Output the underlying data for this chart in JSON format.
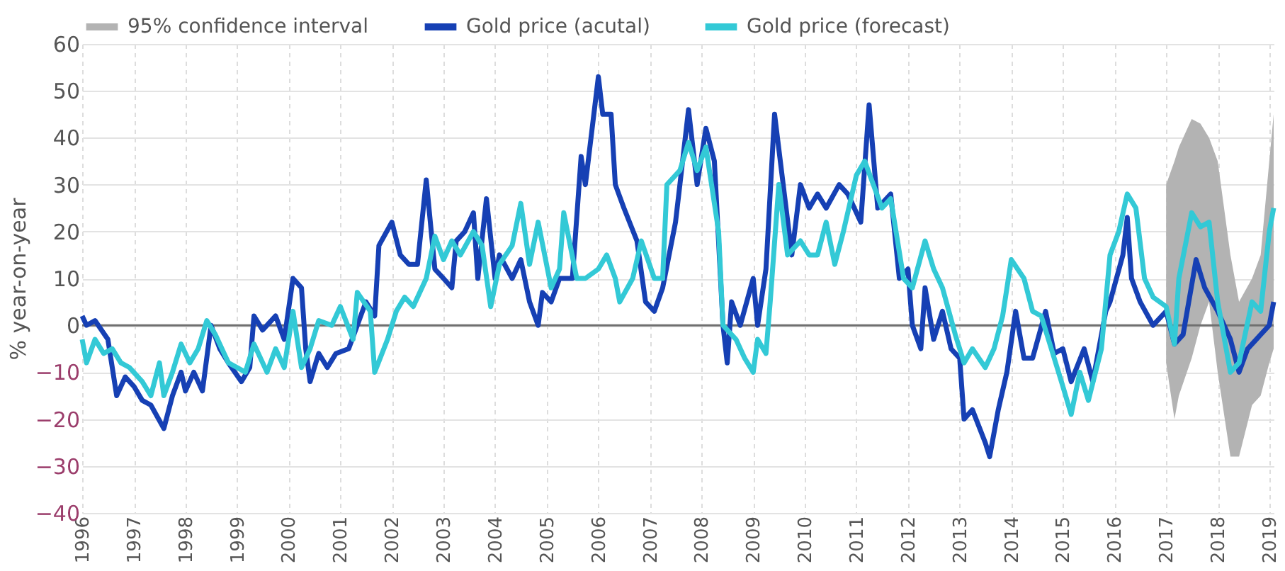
{
  "chart_data": {
    "type": "line",
    "ylabel": "% year-on-year",
    "xlim": [
      "1996-01",
      "2019-02"
    ],
    "ylim": [
      -40,
      60
    ],
    "yticks": [
      -40,
      -30,
      -20,
      -10,
      0,
      10,
      20,
      30,
      40,
      50,
      60
    ],
    "xticks": [
      "1996",
      "1997",
      "1998",
      "1999",
      "2000",
      "2001",
      "2002",
      "2003",
      "2004",
      "2005",
      "2006",
      "2007",
      "2008",
      "2009",
      "2010",
      "2011",
      "2012",
      "2013",
      "2014",
      "2015",
      "2016",
      "2017",
      "2018",
      "2019"
    ],
    "grid": true,
    "legend": "top",
    "annotations": [
      "95% confidence interval"
    ],
    "ref_lines": [
      {
        "axis": "y",
        "value": 0,
        "color": "#707070"
      }
    ],
    "series": [
      {
        "name": "Gold price (acutal)",
        "color": "#1640b4",
        "x": [
          "1996-01",
          "1996-02",
          "1996-04",
          "1996-07",
          "1996-09",
          "1996-11",
          "1997-01",
          "1997-03",
          "1997-05",
          "1997-08",
          "1997-10",
          "1997-12",
          "1998-01",
          "1998-03",
          "1998-05",
          "1998-07",
          "1998-09",
          "1998-11",
          "1999-02",
          "1999-04",
          "1999-05",
          "1999-07",
          "1999-10",
          "1999-12",
          "2000-02",
          "2000-04",
          "2000-05",
          "2000-06",
          "2000-08",
          "2000-10",
          "2000-12",
          "2001-03",
          "2001-05",
          "2001-07",
          "2001-09",
          "2001-10",
          "2002-01",
          "2002-03",
          "2002-05",
          "2002-07",
          "2002-09",
          "2002-11",
          "2003-01",
          "2003-03",
          "2003-04",
          "2003-06",
          "2003-08",
          "2003-09",
          "2003-11",
          "2004-01",
          "2004-02",
          "2004-05",
          "2004-07",
          "2004-09",
          "2004-11",
          "2004-12",
          "2005-02",
          "2005-04",
          "2005-07",
          "2005-09",
          "2005-10",
          "2006-01",
          "2006-02",
          "2006-04",
          "2006-05",
          "2006-07",
          "2006-10",
          "2006-12",
          "2007-02",
          "2007-04",
          "2007-07",
          "2007-08",
          "2007-10",
          "2007-12",
          "2008-02",
          "2008-04",
          "2008-06",
          "2008-07",
          "2008-08",
          "2008-10",
          "2009-01",
          "2009-02",
          "2009-04",
          "2009-06",
          "2009-08",
          "2009-10",
          "2009-12",
          "2010-02",
          "2010-04",
          "2010-06",
          "2010-09",
          "2010-11",
          "2011-02",
          "2011-04",
          "2011-06",
          "2011-09",
          "2011-11",
          "2012-01",
          "2012-02",
          "2012-04",
          "2012-05",
          "2012-07",
          "2012-09",
          "2012-11",
          "2013-01",
          "2013-02",
          "2013-04",
          "2013-07",
          "2013-08",
          "2013-10",
          "2013-12",
          "2014-02",
          "2014-04",
          "2014-06",
          "2014-09",
          "2014-11",
          "2015-01",
          "2015-03",
          "2015-06",
          "2015-08",
          "2015-11",
          "2015-12",
          "2016-03",
          "2016-04",
          "2016-05",
          "2016-07",
          "2016-10",
          "2017-01",
          "2017-03",
          "2017-05",
          "2017-08",
          "2017-10",
          "2018-01",
          "2018-04",
          "2018-06",
          "2018-08",
          "2018-10",
          "2019-01",
          "2019-02"
        ],
        "values": [
          2,
          0,
          1,
          -3,
          -15,
          -11,
          -13,
          -16,
          -17,
          -22,
          -15,
          -10,
          -14,
          -10,
          -14,
          0,
          -5,
          -8,
          -12,
          -9,
          2,
          -1,
          2,
          -3,
          10,
          8,
          -5,
          -12,
          -6,
          -9,
          -6,
          -5,
          0,
          5,
          2,
          17,
          22,
          15,
          13,
          13,
          31,
          12,
          10,
          8,
          18,
          20,
          24,
          10,
          27,
          10,
          15,
          10,
          14,
          5,
          0,
          7,
          5,
          10,
          10,
          36,
          30,
          53,
          45,
          45,
          30,
          25,
          18,
          5,
          3,
          8,
          22,
          30,
          46,
          30,
          42,
          35,
          0,
          -8,
          5,
          0,
          10,
          0,
          12,
          45,
          30,
          15,
          30,
          25,
          28,
          25,
          30,
          28,
          22,
          47,
          25,
          28,
          10,
          12,
          0,
          -5,
          8,
          -3,
          3,
          -5,
          -7,
          -20,
          -18,
          -25,
          -28,
          -18,
          -10,
          3,
          -7,
          -7,
          3,
          -6,
          -5,
          -12,
          -5,
          -12,
          3,
          5,
          15,
          23,
          10,
          5,
          0,
          3,
          -4,
          -2,
          14,
          8,
          3,
          -3,
          -10,
          -5,
          -3,
          0,
          5
        ]
      },
      {
        "name": "Gold price (forecast)",
        "color": "#33c9d6",
        "x": [
          "1996-01",
          "1996-02",
          "1996-04",
          "1996-06",
          "1996-08",
          "1996-10",
          "1996-12",
          "1997-03",
          "1997-05",
          "1997-07",
          "1997-08",
          "1997-10",
          "1997-12",
          "1998-02",
          "1998-04",
          "1998-06",
          "1998-08",
          "1998-11",
          "1999-01",
          "1999-03",
          "1999-05",
          "1999-08",
          "1999-10",
          "1999-12",
          "2000-02",
          "2000-04",
          "2000-06",
          "2000-08",
          "2000-11",
          "2001-01",
          "2001-04",
          "2001-05",
          "2001-08",
          "2001-09",
          "2001-12",
          "2002-02",
          "2002-04",
          "2002-06",
          "2002-09",
          "2002-11",
          "2003-01",
          "2003-03",
          "2003-05",
          "2003-08",
          "2003-10",
          "2003-12",
          "2004-02",
          "2004-05",
          "2004-07",
          "2004-09",
          "2004-11",
          "2005-02",
          "2005-04",
          "2005-05",
          "2005-08",
          "2005-10",
          "2006-01",
          "2006-03",
          "2006-05",
          "2006-06",
          "2006-09",
          "2006-11",
          "2007-02",
          "2007-04",
          "2007-05",
          "2007-08",
          "2007-10",
          "2007-12",
          "2008-02",
          "2008-05",
          "2008-06",
          "2008-09",
          "2008-11",
          "2009-01",
          "2009-02",
          "2009-04",
          "2009-05",
          "2009-07",
          "2009-09",
          "2009-12",
          "2010-02",
          "2010-04",
          "2010-06",
          "2010-08",
          "2010-10",
          "2011-01",
          "2011-03",
          "2011-05",
          "2011-07",
          "2011-09",
          "2011-12",
          "2012-02",
          "2012-05",
          "2012-07",
          "2012-09",
          "2012-12",
          "2013-02",
          "2013-04",
          "2013-07",
          "2013-09",
          "2013-11",
          "2014-01",
          "2014-04",
          "2014-06",
          "2014-08",
          "2014-11",
          "2015-01",
          "2015-03",
          "2015-05",
          "2015-07",
          "2015-10",
          "2015-12",
          "2016-02",
          "2016-04",
          "2016-06",
          "2016-08",
          "2016-10",
          "2017-01",
          "2017-03",
          "2017-04",
          "2017-07",
          "2017-09",
          "2017-11",
          "2018-01",
          "2018-04",
          "2018-06",
          "2018-09",
          "2018-11",
          "2019-01",
          "2019-02"
        ],
        "values": [
          -3,
          -8,
          -3,
          -6,
          -5,
          -8,
          -9,
          -12,
          -15,
          -8,
          -15,
          -10,
          -4,
          -8,
          -5,
          1,
          -2,
          -8,
          -9,
          -10,
          -4,
          -10,
          -5,
          -9,
          3,
          -9,
          -5,
          1,
          0,
          4,
          -3,
          7,
          3,
          -10,
          -3,
          3,
          6,
          4,
          10,
          19,
          14,
          18,
          15,
          20,
          17,
          4,
          13,
          17,
          26,
          13,
          22,
          8,
          12,
          24,
          10,
          10,
          12,
          15,
          10,
          5,
          10,
          18,
          10,
          10,
          30,
          33,
          39,
          33,
          38,
          20,
          0,
          -3,
          -7,
          -10,
          -3,
          -6,
          5,
          30,
          15,
          18,
          15,
          15,
          22,
          13,
          20,
          32,
          35,
          30,
          25,
          27,
          10,
          8,
          18,
          12,
          8,
          -2,
          -8,
          -5,
          -9,
          -5,
          2,
          14,
          10,
          3,
          2,
          -7,
          -13,
          -19,
          -10,
          -16,
          -5,
          15,
          20,
          28,
          25,
          10,
          6,
          4,
          -4,
          10,
          24,
          21,
          22,
          5,
          -10,
          -8,
          5,
          3,
          20,
          25
        ],
        "lower": [
          null,
          null,
          null,
          null,
          null,
          null,
          null,
          null,
          null,
          null,
          null,
          null,
          null,
          null,
          null,
          null,
          null,
          null,
          null,
          null,
          null,
          null,
          null,
          null,
          null,
          null,
          null,
          null,
          null,
          null,
          null,
          null,
          null,
          null,
          null,
          null,
          null,
          null,
          null,
          null,
          null,
          null,
          null,
          null,
          null,
          null,
          null,
          null,
          null,
          null,
          null,
          null,
          null,
          null,
          null,
          null,
          null,
          null,
          null,
          null,
          null,
          null,
          null,
          null,
          null,
          null,
          null,
          null,
          null,
          null,
          null,
          null,
          null,
          null,
          null,
          null,
          null,
          null,
          null,
          null,
          null,
          null,
          null,
          null,
          null,
          null,
          null,
          null,
          null,
          null,
          null,
          null,
          null,
          null,
          null,
          null,
          null,
          null,
          null,
          null,
          null,
          null,
          null,
          null,
          null,
          null,
          null,
          null,
          null,
          null,
          null,
          null,
          null,
          null,
          null,
          null,
          null,
          -8,
          -20,
          -15,
          -7,
          0,
          5,
          -10,
          -28,
          -28,
          -17,
          -15,
          -8,
          -5
        ],
        "upper": [
          null,
          null,
          null,
          null,
          null,
          null,
          null,
          null,
          null,
          null,
          null,
          null,
          null,
          null,
          null,
          null,
          null,
          null,
          null,
          null,
          null,
          null,
          null,
          null,
          null,
          null,
          null,
          null,
          null,
          null,
          null,
          null,
          null,
          null,
          null,
          null,
          null,
          null,
          null,
          null,
          null,
          null,
          null,
          null,
          null,
          null,
          null,
          null,
          null,
          null,
          null,
          null,
          null,
          null,
          null,
          null,
          null,
          null,
          null,
          null,
          null,
          null,
          null,
          null,
          null,
          null,
          null,
          null,
          null,
          null,
          null,
          null,
          null,
          null,
          null,
          null,
          null,
          null,
          null,
          null,
          null,
          null,
          null,
          null,
          null,
          null,
          null,
          null,
          null,
          null,
          null,
          null,
          null,
          null,
          null,
          null,
          null,
          null,
          null,
          null,
          null,
          null,
          null,
          null,
          null,
          null,
          null,
          null,
          null,
          null,
          null,
          null,
          null,
          null,
          null,
          null,
          null,
          30,
          35,
          38,
          44,
          43,
          40,
          35,
          15,
          5,
          10,
          15,
          35,
          45
        ]
      }
    ]
  }
}
